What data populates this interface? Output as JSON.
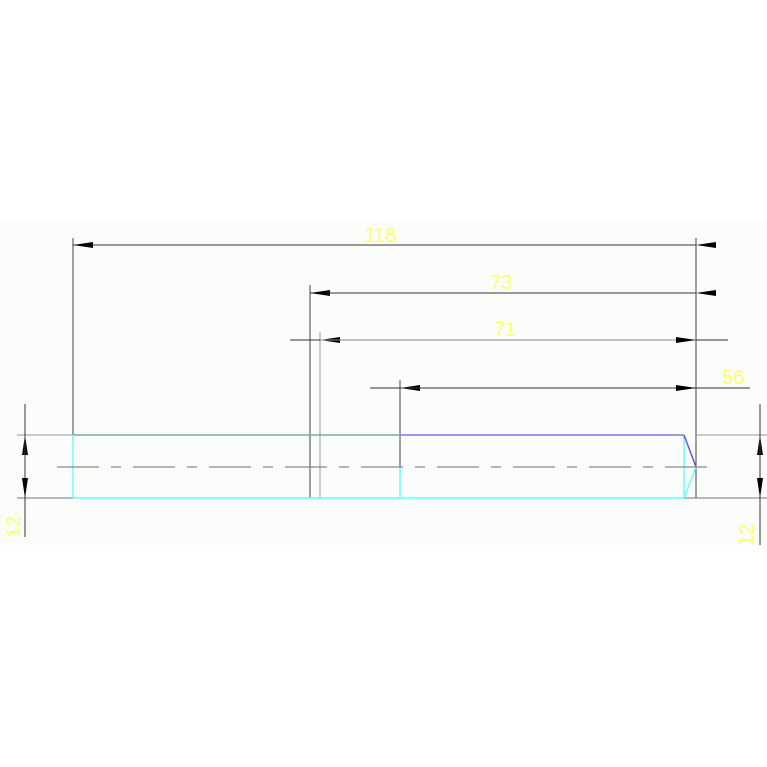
{
  "dimensions": {
    "overall_length": "118",
    "length_73": "73",
    "length_71": "71",
    "length_56": "56",
    "height_left": "12",
    "height_right": "12"
  },
  "colors": {
    "background_band": "#fbfdfb",
    "dimension_line": "#333333",
    "dimension_text": "#ffff66",
    "part_outline_cyan": "#66ffff",
    "part_outline_purple": "#8877dd",
    "part_top_edge": "#77aaaa",
    "centerline": "#888888"
  }
}
